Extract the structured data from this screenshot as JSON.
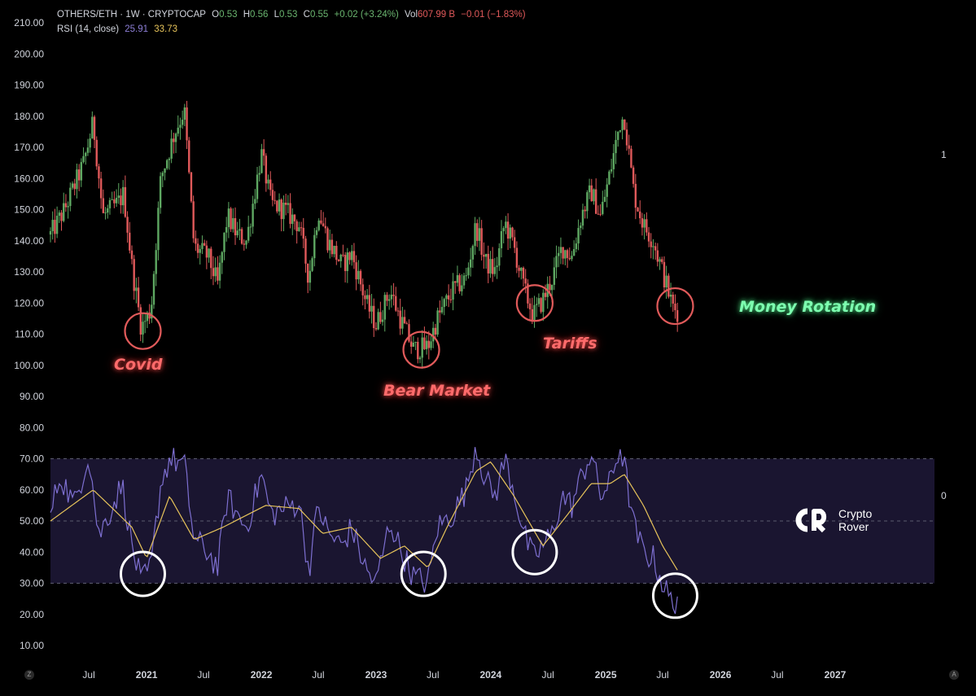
{
  "header": {
    "symbol": "OTHERS/ETH · 1W · CRYPTOCAP",
    "o_label": "O",
    "o_value": "0.53",
    "h_label": "H",
    "h_value": "0.56",
    "l_label": "L",
    "l_value": "0.53",
    "c_label": "C",
    "c_value": "0.55",
    "change": "+0.02 (+3.24%)",
    "vol_label": "Vol",
    "vol_value": "607.99 B",
    "vol_change": "−0.01 (−1.83%)",
    "rsi_label": "RSI (14, close)",
    "rsi_value": "25.91",
    "rsi_ma_value": "33.73"
  },
  "side_labels": {
    "price_pane": "1",
    "rsi_pane": "0"
  },
  "annotations": {
    "covid": "Covid",
    "bear_market": "Bear Market",
    "tariffs": "Tariffs",
    "money_rotation": "Money Rotation"
  },
  "logo": {
    "line1": "Crypto",
    "line2": "Rover"
  },
  "corners": {
    "left": "Z",
    "right": "A"
  },
  "colors": {
    "up_candle": "#5ea862",
    "down_candle": "#e0595a",
    "rsi_line": "#7d6fd0",
    "rsi_ma": "#e6c35a",
    "rsi_band": "#1a1530",
    "red_annotation": "#ff6b6b",
    "green_annotation": "#7dffb0"
  },
  "chart_data": {
    "type": "candlestick",
    "y_axis_ticks": [
      "210.00",
      "200.00",
      "190.00",
      "180.00",
      "170.00",
      "160.00",
      "150.00",
      "140.00",
      "130.00",
      "120.00",
      "110.00",
      "100.00",
      "90.00",
      "80.00",
      "70.00",
      "60.00",
      "50.00",
      "40.00",
      "30.00",
      "20.00",
      "10.00"
    ],
    "ylim": [
      10,
      210
    ],
    "x_axis_ticks": [
      "Jul",
      "2021",
      "Jul",
      "2022",
      "Jul",
      "2023",
      "Jul",
      "2024",
      "Jul",
      "2025",
      "Jul",
      "2026",
      "Jul",
      "2027"
    ],
    "xlim": [
      "2020-03-01",
      "2027-06-01"
    ],
    "price_anchors": [
      {
        "t": "2020-03-01",
        "v": 142
      },
      {
        "t": "2020-04-15",
        "v": 150
      },
      {
        "t": "2020-06-15",
        "v": 165
      },
      {
        "t": "2020-07-15",
        "v": 178
      },
      {
        "t": "2020-08-15",
        "v": 148
      },
      {
        "t": "2020-10-01",
        "v": 152
      },
      {
        "t": "2020-10-20",
        "v": 155
      },
      {
        "t": "2020-11-15",
        "v": 132
      },
      {
        "t": "2020-12-15",
        "v": 112
      },
      {
        "t": "2021-01-15",
        "v": 118
      },
      {
        "t": "2021-02-15",
        "v": 160
      },
      {
        "t": "2021-04-01",
        "v": 175
      },
      {
        "t": "2021-05-01",
        "v": 182
      },
      {
        "t": "2021-06-01",
        "v": 138
      },
      {
        "t": "2021-07-15",
        "v": 135
      },
      {
        "t": "2021-08-15",
        "v": 126
      },
      {
        "t": "2021-09-15",
        "v": 148
      },
      {
        "t": "2021-10-15",
        "v": 142
      },
      {
        "t": "2021-11-15",
        "v": 140
      },
      {
        "t": "2022-01-01",
        "v": 168
      },
      {
        "t": "2022-02-01",
        "v": 152
      },
      {
        "t": "2022-03-15",
        "v": 150
      },
      {
        "t": "2022-05-01",
        "v": 145
      },
      {
        "t": "2022-06-01",
        "v": 128
      },
      {
        "t": "2022-07-01",
        "v": 150
      },
      {
        "t": "2022-08-01",
        "v": 140
      },
      {
        "t": "2022-09-15",
        "v": 132
      },
      {
        "t": "2022-10-15",
        "v": 136
      },
      {
        "t": "2022-12-01",
        "v": 120
      },
      {
        "t": "2023-01-01",
        "v": 113
      },
      {
        "t": "2023-02-15",
        "v": 124
      },
      {
        "t": "2023-03-15",
        "v": 116
      },
      {
        "t": "2023-05-01",
        "v": 105
      },
      {
        "t": "2023-06-15",
        "v": 106
      },
      {
        "t": "2023-07-15",
        "v": 115
      },
      {
        "t": "2023-09-01",
        "v": 124
      },
      {
        "t": "2023-10-15",
        "v": 128
      },
      {
        "t": "2023-11-15",
        "v": 145
      },
      {
        "t": "2023-12-15",
        "v": 133
      },
      {
        "t": "2024-01-15",
        "v": 130
      },
      {
        "t": "2024-02-15",
        "v": 146
      },
      {
        "t": "2024-03-15",
        "v": 138
      },
      {
        "t": "2024-04-15",
        "v": 125
      },
      {
        "t": "2024-05-15",
        "v": 116
      },
      {
        "t": "2024-06-15",
        "v": 121
      },
      {
        "t": "2024-07-15",
        "v": 128
      },
      {
        "t": "2024-08-15",
        "v": 138
      },
      {
        "t": "2024-09-15",
        "v": 135
      },
      {
        "t": "2024-10-15",
        "v": 148
      },
      {
        "t": "2024-11-15",
        "v": 156
      },
      {
        "t": "2024-12-15",
        "v": 148
      },
      {
        "t": "2025-01-15",
        "v": 162
      },
      {
        "t": "2025-02-15",
        "v": 178
      },
      {
        "t": "2025-03-01",
        "v": 180
      },
      {
        "t": "2025-04-01",
        "v": 155
      },
      {
        "t": "2025-05-01",
        "v": 145
      },
      {
        "t": "2025-06-01",
        "v": 140
      },
      {
        "t": "2025-07-01",
        "v": 130
      },
      {
        "t": "2025-08-01",
        "v": 119
      },
      {
        "t": "2025-08-20",
        "v": 117
      }
    ],
    "rsi": {
      "overbought": 70,
      "mid": 50,
      "oversold": 30,
      "rsi_anchors": [
        {
          "t": "2020-03-01",
          "v": 52
        },
        {
          "t": "2020-04-01",
          "v": 65
        },
        {
          "t": "2020-05-15",
          "v": 55
        },
        {
          "t": "2020-07-01",
          "v": 72
        },
        {
          "t": "2020-08-01",
          "v": 45
        },
        {
          "t": "2020-09-15",
          "v": 55
        },
        {
          "t": "2020-10-15",
          "v": 62
        },
        {
          "t": "2020-11-15",
          "v": 42
        },
        {
          "t": "2020-12-15",
          "v": 30
        },
        {
          "t": "2021-01-15",
          "v": 35
        },
        {
          "t": "2021-02-15",
          "v": 62
        },
        {
          "t": "2021-03-15",
          "v": 70
        },
        {
          "t": "2021-05-01",
          "v": 68
        },
        {
          "t": "2021-06-01",
          "v": 44
        },
        {
          "t": "2021-07-15",
          "v": 40
        },
        {
          "t": "2021-08-15",
          "v": 35
        },
        {
          "t": "2021-09-15",
          "v": 58
        },
        {
          "t": "2021-10-15",
          "v": 52
        },
        {
          "t": "2021-11-15",
          "v": 48
        },
        {
          "t": "2022-01-01",
          "v": 65
        },
        {
          "t": "2022-02-01",
          "v": 52
        },
        {
          "t": "2022-03-15",
          "v": 54
        },
        {
          "t": "2022-05-01",
          "v": 56
        },
        {
          "t": "2022-06-01",
          "v": 34
        },
        {
          "t": "2022-07-01",
          "v": 55
        },
        {
          "t": "2022-08-01",
          "v": 46
        },
        {
          "t": "2022-09-15",
          "v": 42
        },
        {
          "t": "2022-10-15",
          "v": 48
        },
        {
          "t": "2022-12-01",
          "v": 34
        },
        {
          "t": "2023-01-01",
          "v": 30
        },
        {
          "t": "2023-02-15",
          "v": 50
        },
        {
          "t": "2023-03-15",
          "v": 42
        },
        {
          "t": "2023-05-01",
          "v": 32
        },
        {
          "t": "2023-06-15",
          "v": 30
        },
        {
          "t": "2023-07-15",
          "v": 48
        },
        {
          "t": "2023-09-01",
          "v": 52
        },
        {
          "t": "2023-10-15",
          "v": 60
        },
        {
          "t": "2023-11-15",
          "v": 75
        },
        {
          "t": "2023-12-15",
          "v": 63
        },
        {
          "t": "2024-01-15",
          "v": 58
        },
        {
          "t": "2024-02-15",
          "v": 70
        },
        {
          "t": "2024-03-15",
          "v": 60
        },
        {
          "t": "2024-04-15",
          "v": 46
        },
        {
          "t": "2024-05-15",
          "v": 38
        },
        {
          "t": "2024-06-15",
          "v": 42
        },
        {
          "t": "2024-07-15",
          "v": 46
        },
        {
          "t": "2024-08-15",
          "v": 58
        },
        {
          "t": "2024-09-15",
          "v": 55
        },
        {
          "t": "2024-10-15",
          "v": 64
        },
        {
          "t": "2024-11-15",
          "v": 72
        },
        {
          "t": "2024-12-15",
          "v": 58
        },
        {
          "t": "2025-01-15",
          "v": 62
        },
        {
          "t": "2025-02-15",
          "v": 74
        },
        {
          "t": "2025-03-01",
          "v": 68
        },
        {
          "t": "2025-04-01",
          "v": 48
        },
        {
          "t": "2025-05-01",
          "v": 40
        },
        {
          "t": "2025-06-01",
          "v": 38
        },
        {
          "t": "2025-07-01",
          "v": 30
        },
        {
          "t": "2025-08-01",
          "v": 23
        },
        {
          "t": "2025-08-20",
          "v": 26
        }
      ],
      "ma_anchors": [
        {
          "t": "2020-03-01",
          "v": 50
        },
        {
          "t": "2020-07-15",
          "v": 60
        },
        {
          "t": "2020-09-15",
          "v": 54
        },
        {
          "t": "2020-11-15",
          "v": 48
        },
        {
          "t": "2021-01-01",
          "v": 38
        },
        {
          "t": "2021-03-15",
          "v": 58
        },
        {
          "t": "2021-06-01",
          "v": 44
        },
        {
          "t": "2021-09-01",
          "v": 48
        },
        {
          "t": "2022-01-15",
          "v": 55
        },
        {
          "t": "2022-05-01",
          "v": 54
        },
        {
          "t": "2022-07-15",
          "v": 46
        },
        {
          "t": "2022-10-15",
          "v": 48
        },
        {
          "t": "2023-01-15",
          "v": 38
        },
        {
          "t": "2023-04-01",
          "v": 42
        },
        {
          "t": "2023-06-15",
          "v": 35
        },
        {
          "t": "2023-08-15",
          "v": 48
        },
        {
          "t": "2023-11-15",
          "v": 66
        },
        {
          "t": "2024-01-01",
          "v": 69
        },
        {
          "t": "2024-03-15",
          "v": 58
        },
        {
          "t": "2024-06-15",
          "v": 42
        },
        {
          "t": "2024-09-01",
          "v": 52
        },
        {
          "t": "2024-11-15",
          "v": 62
        },
        {
          "t": "2025-01-15",
          "v": 62
        },
        {
          "t": "2025-03-01",
          "v": 65
        },
        {
          "t": "2025-05-01",
          "v": 55
        },
        {
          "t": "2025-07-01",
          "v": 42
        },
        {
          "t": "2025-08-20",
          "v": 33.73
        }
      ]
    },
    "highlight_circles": [
      {
        "pane": "price",
        "t": "2020-12-20",
        "v": 111,
        "label": "covid"
      },
      {
        "pane": "price",
        "t": "2023-05-25",
        "v": 105,
        "label": "bear_market"
      },
      {
        "pane": "price",
        "t": "2024-05-20",
        "v": 120,
        "label": "tariffs"
      },
      {
        "pane": "price",
        "t": "2025-08-10",
        "v": 119,
        "label": "money_rotation"
      },
      {
        "pane": "rsi",
        "t": "2020-12-20",
        "v": 33
      },
      {
        "pane": "rsi",
        "t": "2023-06-01",
        "v": 33
      },
      {
        "pane": "rsi",
        "t": "2024-05-20",
        "v": 40
      },
      {
        "pane": "rsi",
        "t": "2025-08-10",
        "v": 26
      }
    ]
  }
}
